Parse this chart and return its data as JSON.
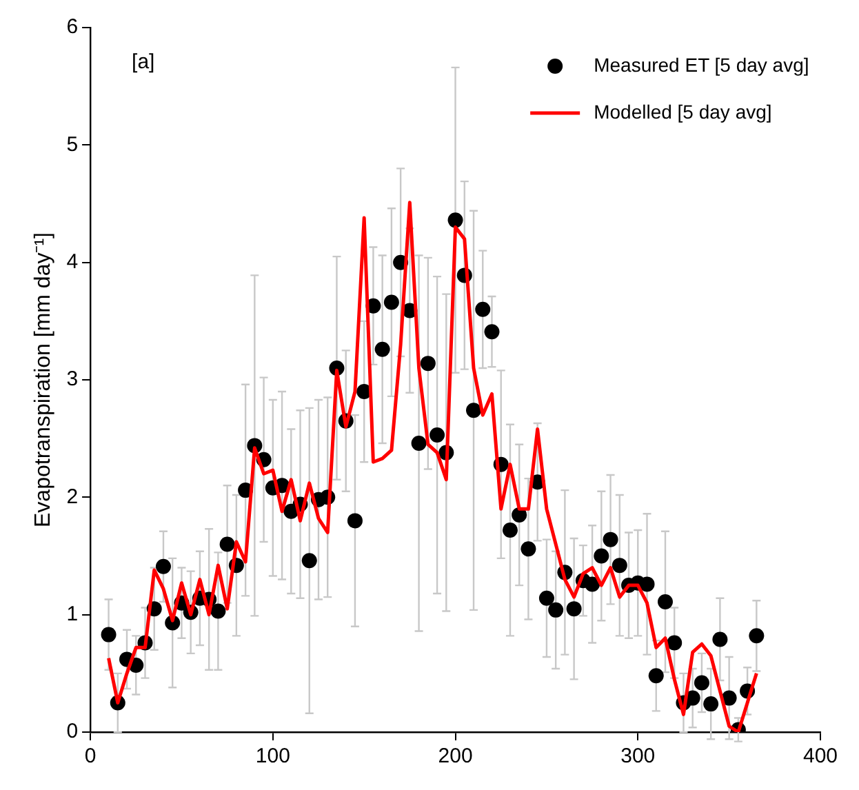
{
  "chart_data": {
    "type": "scatter",
    "ylabel": "Evapotranspiration [mm day⁻¹]",
    "annotations": [
      "[a]"
    ],
    "x": [
      10,
      15,
      20,
      25,
      30,
      35,
      40,
      45,
      50,
      55,
      60,
      65,
      70,
      75,
      80,
      85,
      90,
      95,
      100,
      105,
      110,
      115,
      120,
      125,
      130,
      135,
      140,
      145,
      150,
      155,
      160,
      165,
      170,
      175,
      180,
      185,
      190,
      195,
      200,
      205,
      210,
      215,
      220,
      225,
      230,
      235,
      240,
      245,
      250,
      255,
      260,
      265,
      270,
      275,
      280,
      285,
      290,
      295,
      300,
      305,
      310,
      315,
      320,
      325,
      330,
      335,
      340,
      345,
      350,
      355,
      360,
      365
    ],
    "series": [
      {
        "name": "Measured ET [5 day avg]",
        "type": "scatter",
        "color": "#000000",
        "marker": "circle",
        "values": [
          0.83,
          0.25,
          0.62,
          0.57,
          0.76,
          1.05,
          1.41,
          0.93,
          1.1,
          1.02,
          1.14,
          1.13,
          1.03,
          1.6,
          1.42,
          2.06,
          2.44,
          2.32,
          2.08,
          2.1,
          1.88,
          1.94,
          1.46,
          1.98,
          2.0,
          3.1,
          2.65,
          1.8,
          2.9,
          3.63,
          3.26,
          3.66,
          4.0,
          3.59,
          2.46,
          3.14,
          2.53,
          2.38,
          4.36,
          3.89,
          2.74,
          3.6,
          3.41,
          2.28,
          1.72,
          1.85,
          1.56,
          2.13,
          1.14,
          1.04,
          1.36,
          1.05,
          1.29,
          1.26,
          1.5,
          1.64,
          1.42,
          1.25,
          1.27,
          1.26,
          0.48,
          1.11,
          0.76,
          0.25,
          0.29,
          0.42,
          0.24,
          0.79,
          0.29,
          0.02,
          0.35,
          0.82
        ],
        "errors": [
          0.3,
          0.25,
          0.25,
          0.25,
          0.3,
          0.35,
          0.3,
          0.55,
          0.3,
          0.35,
          0.4,
          0.6,
          0.5,
          0.5,
          0.6,
          0.9,
          1.45,
          0.7,
          0.75,
          0.8,
          0.7,
          0.8,
          1.3,
          0.85,
          0.85,
          0.95,
          0.6,
          0.9,
          0.6,
          0.5,
          0.8,
          0.8,
          0.8,
          0.7,
          1.6,
          0.9,
          1.35,
          1.35,
          1.3,
          0.8,
          1.7,
          0.5,
          0.3,
          0.8,
          0.9,
          0.6,
          0.6,
          0.5,
          0.5,
          0.5,
          0.7,
          0.6,
          0.3,
          0.5,
          0.55,
          0.55,
          0.6,
          0.45,
          0.45,
          0.6,
          0.3,
          0.6,
          0.3,
          0.25,
          0.25,
          0.25,
          0.3,
          0.35,
          0.35,
          0.1,
          0.2,
          0.3
        ]
      },
      {
        "name": "Modelled [5 day avg]",
        "type": "line",
        "color": "#ff0000",
        "marker": "none",
        "line_style": "solid",
        "values": [
          0.63,
          0.25,
          0.5,
          0.72,
          0.72,
          1.38,
          1.22,
          0.95,
          1.27,
          1.0,
          1.3,
          1.0,
          1.42,
          1.05,
          1.62,
          1.45,
          2.42,
          2.2,
          2.23,
          1.88,
          2.15,
          1.8,
          2.12,
          1.82,
          1.7,
          3.08,
          2.6,
          2.9,
          4.38,
          2.3,
          2.33,
          2.4,
          3.3,
          4.51,
          3.1,
          2.45,
          2.38,
          2.15,
          4.3,
          4.2,
          3.1,
          2.7,
          2.88,
          1.9,
          2.28,
          1.9,
          1.9,
          2.58,
          1.9,
          1.6,
          1.3,
          1.15,
          1.35,
          1.4,
          1.25,
          1.4,
          1.15,
          1.25,
          1.25,
          1.1,
          0.72,
          0.8,
          0.45,
          0.15,
          0.68,
          0.75,
          0.65,
          0.35,
          0.05,
          0.0,
          0.25,
          0.5
        ]
      }
    ],
    "xlim": [
      0,
      400
    ],
    "xticks": [
      0,
      100,
      200,
      300,
      400
    ],
    "ylim": [
      0,
      6
    ],
    "yticks": [
      0,
      1,
      2,
      3,
      4,
      5,
      6
    ],
    "grid": false,
    "legend": "top right"
  }
}
